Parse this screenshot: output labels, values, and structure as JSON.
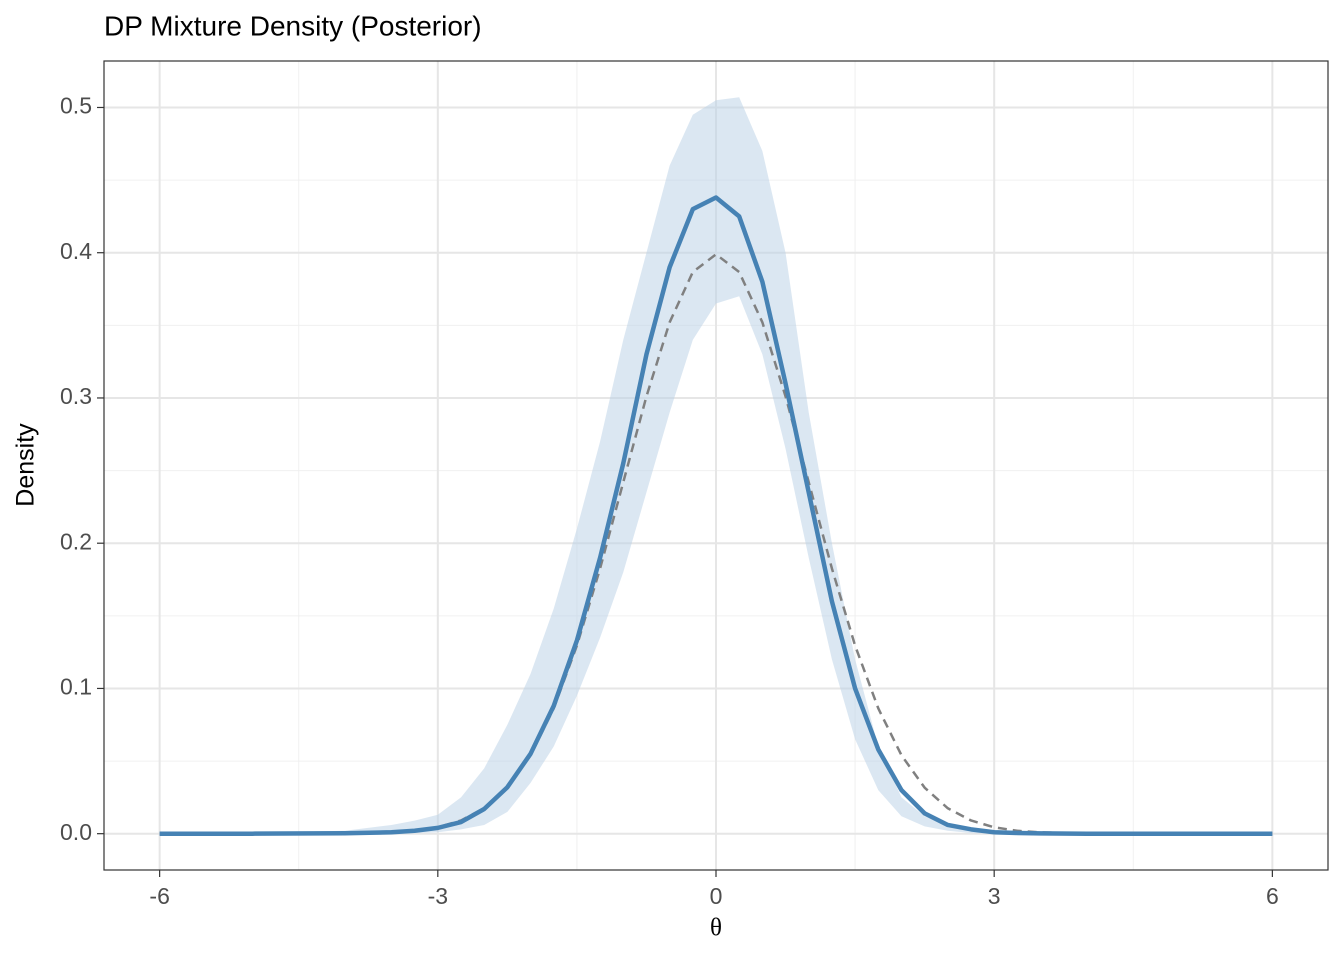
{
  "chart_data": {
    "type": "line",
    "title": "DP Mixture Density (Posterior)",
    "xlabel": "θ",
    "ylabel": "Density",
    "x": [
      -6,
      -5,
      -4,
      -3.5,
      -3.25,
      -3,
      -2.75,
      -2.5,
      -2.25,
      -2,
      -1.75,
      -1.5,
      -1.25,
      -1,
      -0.75,
      -0.5,
      -0.25,
      0,
      0.25,
      0.5,
      0.75,
      1,
      1.25,
      1.5,
      1.75,
      2,
      2.25,
      2.5,
      2.75,
      3,
      3.25,
      3.5,
      4,
      5,
      6
    ],
    "band": {
      "color": "#b8cfe6",
      "lower": [
        0,
        0,
        0,
        0,
        0.0005,
        0.001,
        0.003,
        0.006,
        0.015,
        0.035,
        0.06,
        0.095,
        0.135,
        0.18,
        0.235,
        0.29,
        0.34,
        0.365,
        0.37,
        0.33,
        0.265,
        0.19,
        0.12,
        0.065,
        0.03,
        0.012,
        0.005,
        0.002,
        0.0005,
        0,
        0,
        0,
        0,
        0,
        0
      ],
      "upper": [
        0,
        0.0005,
        0.002,
        0.006,
        0.009,
        0.013,
        0.025,
        0.045,
        0.075,
        0.11,
        0.155,
        0.21,
        0.27,
        0.34,
        0.4,
        0.46,
        0.495,
        0.505,
        0.507,
        0.47,
        0.4,
        0.29,
        0.2,
        0.12,
        0.06,
        0.025,
        0.012,
        0.006,
        0.003,
        0.001,
        0.0005,
        0.0002,
        0,
        0,
        0
      ]
    },
    "series": [
      {
        "color": "#4682b4",
        "dashed": false,
        "values": [
          0,
          0,
          0.0003,
          0.001,
          0.002,
          0.004,
          0.008,
          0.017,
          0.032,
          0.055,
          0.088,
          0.133,
          0.19,
          0.255,
          0.33,
          0.39,
          0.43,
          0.438,
          0.425,
          0.38,
          0.31,
          0.235,
          0.16,
          0.1,
          0.058,
          0.03,
          0.014,
          0.006,
          0.003,
          0.001,
          0.0005,
          0.0002,
          0,
          0,
          0
        ]
      },
      {
        "color": "#808080",
        "dashed": true,
        "values": [
          0,
          0,
          0.0001,
          0.0009,
          0.002,
          0.0044,
          0.0091,
          0.0175,
          0.0317,
          0.054,
          0.0863,
          0.1295,
          0.1826,
          0.242,
          0.3011,
          0.3521,
          0.3867,
          0.3989,
          0.3867,
          0.3521,
          0.3011,
          0.242,
          0.1826,
          0.1295,
          0.0863,
          0.054,
          0.0317,
          0.0175,
          0.0091,
          0.0044,
          0.002,
          0.0009,
          0.0001,
          0,
          0
        ]
      }
    ],
    "xlim": [
      -6.6,
      6.6
    ],
    "ylim": [
      -0.025,
      0.532
    ],
    "xticks": [
      -6,
      -3,
      0,
      3,
      6
    ],
    "yticks": [
      {
        "value": 0,
        "label": "0.0"
      },
      0.1,
      0.2,
      0.3,
      0.4,
      0.5
    ],
    "grid": true
  }
}
